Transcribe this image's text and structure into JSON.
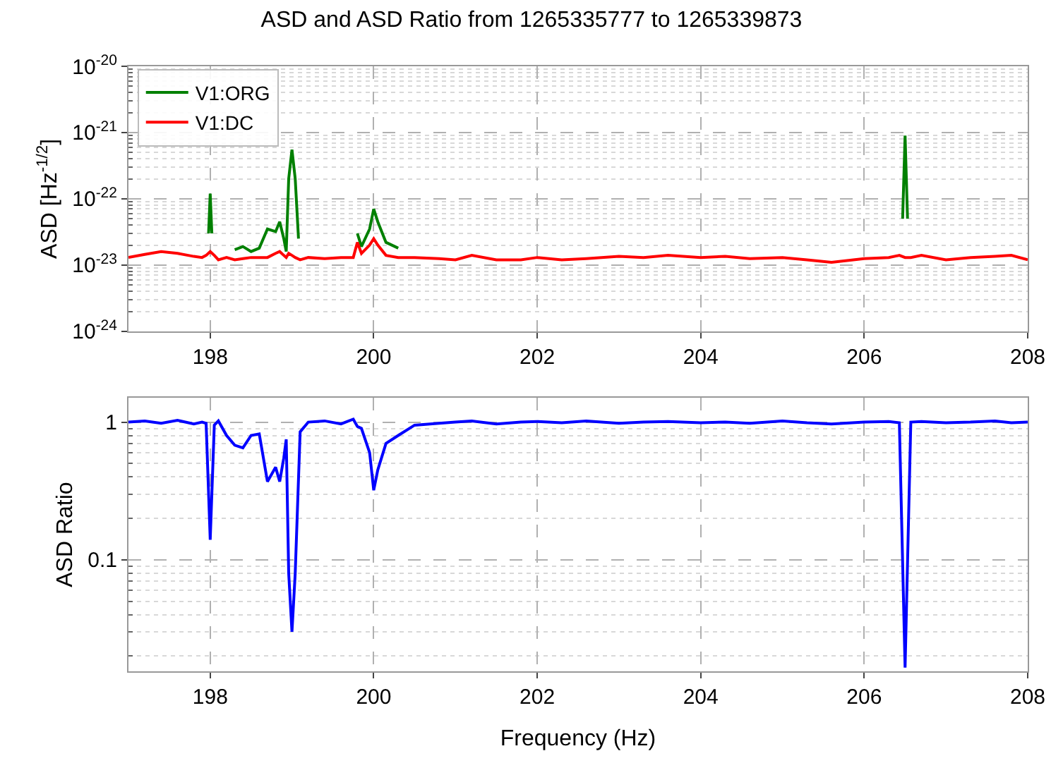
{
  "chart_data": [
    {
      "type": "line",
      "title": "ASD and ASD Ratio from 1265335777 to 1265339873",
      "ylabel": "ASD [Hz$^{-1/2}$]",
      "log": "y",
      "grid": true,
      "legend": "top left",
      "marker": "none",
      "line_style": "solid",
      "xlim": [
        197,
        208
      ],
      "xticks": [
        198,
        200,
        202,
        204,
        206,
        208
      ],
      "ylim": [
        1e-24,
        1e-20
      ],
      "yticks": [
        {
          "value": 1e-24,
          "label": "10$^{-24}$"
        },
        {
          "value": 1e-23,
          "label": "10$^{-23}$"
        },
        {
          "value": 1e-22,
          "label": "10$^{-22}$"
        },
        {
          "value": 1e-21,
          "label": "10$^{-21}$"
        },
        {
          "value": 1e-20,
          "label": "10$^{-20}$"
        }
      ],
      "x": [
        197.0,
        197.2,
        197.4,
        197.6,
        197.8,
        197.9,
        197.95,
        198.0,
        198.05,
        198.1,
        198.2,
        198.3,
        198.4,
        198.5,
        198.6,
        198.7,
        198.8,
        198.85,
        198.9,
        198.93,
        198.96,
        199.0,
        199.04,
        199.1,
        199.2,
        199.4,
        199.6,
        199.75,
        199.8,
        199.85,
        199.95,
        200.0,
        200.05,
        200.15,
        200.3,
        200.5,
        200.8,
        201.0,
        201.2,
        201.5,
        201.8,
        202.0,
        202.3,
        202.6,
        203.0,
        203.3,
        203.6,
        204.0,
        204.3,
        204.6,
        205.0,
        205.3,
        205.6,
        206.0,
        206.3,
        206.43,
        206.5,
        206.57,
        206.7,
        207.0,
        207.3,
        207.6,
        207.8,
        208.0
      ],
      "series": [
        {
          "name": "V1:ORG",
          "color": "#008000",
          "x": [
            197.98,
            198.0,
            198.02,
            198.15,
            198.3,
            198.4,
            198.5,
            198.6,
            198.7,
            198.8,
            198.85,
            198.9,
            198.93,
            198.96,
            199.0,
            199.04,
            199.08,
            199.5,
            199.8,
            199.85,
            199.95,
            200.0,
            200.05,
            200.15,
            200.3,
            203.0,
            206.47,
            206.5,
            206.53
          ],
          "values": [
            3e-23,
            1.2e-22,
            3e-23,
            null,
            1.7e-23,
            1.9e-23,
            1.6e-23,
            1.8e-23,
            3.5e-23,
            3.2e-23,
            4.5e-23,
            2.5e-23,
            1.6e-23,
            2e-22,
            5.5e-22,
            2e-22,
            2.5e-23,
            null,
            3e-23,
            1.9e-23,
            3.5e-23,
            7e-23,
            4.5e-23,
            2.2e-23,
            1.8e-23,
            null,
            5e-23,
            9e-22,
            5e-23
          ]
        },
        {
          "name": "V1:DC",
          "color": "#ff0000",
          "values": [
            1.3e-23,
            1.45e-23,
            1.6e-23,
            1.5e-23,
            1.35e-23,
            1.3e-23,
            1.4e-23,
            1.6e-23,
            1.4e-23,
            1.2e-23,
            1.3e-23,
            1.2e-23,
            1.25e-23,
            1.3e-23,
            1.3e-23,
            1.3e-23,
            1.5e-23,
            1.6e-23,
            1.4e-23,
            1.3e-23,
            1.5e-23,
            1.4e-23,
            1.3e-23,
            1.2e-23,
            1.3e-23,
            1.25e-23,
            1.3e-23,
            1.3e-23,
            2.2e-23,
            1.5e-23,
            2e-23,
            2.5e-23,
            2e-23,
            1.4e-23,
            1.3e-23,
            1.3e-23,
            1.25e-23,
            1.2e-23,
            1.4e-23,
            1.2e-23,
            1.2e-23,
            1.3e-23,
            1.2e-23,
            1.25e-23,
            1.35e-23,
            1.3e-23,
            1.4e-23,
            1.3e-23,
            1.35e-23,
            1.25e-23,
            1.3e-23,
            1.2e-23,
            1.1e-23,
            1.25e-23,
            1.3e-23,
            1.4e-23,
            1.3e-23,
            1.3e-23,
            1.4e-23,
            1.2e-23,
            1.3e-23,
            1.35e-23,
            1.4e-23,
            1.2e-23
          ]
        }
      ]
    },
    {
      "type": "line",
      "xlabel": "Frequency (Hz)",
      "ylabel": "ASD Ratio",
      "log": "y",
      "grid": true,
      "marker": "none",
      "line_style": "solid",
      "xlim": [
        197,
        208
      ],
      "xticks": [
        198,
        200,
        202,
        204,
        206,
        208
      ],
      "ylim": [
        0.0155,
        1.5
      ],
      "yticks": [
        0.1,
        1
      ],
      "x": [
        197.0,
        197.2,
        197.4,
        197.6,
        197.8,
        197.9,
        197.95,
        198.0,
        198.05,
        198.1,
        198.2,
        198.3,
        198.4,
        198.5,
        198.6,
        198.7,
        198.8,
        198.85,
        198.9,
        198.93,
        198.96,
        199.0,
        199.04,
        199.1,
        199.2,
        199.4,
        199.6,
        199.75,
        199.8,
        199.85,
        199.95,
        200.0,
        200.05,
        200.15,
        200.3,
        200.5,
        200.8,
        201.0,
        201.2,
        201.5,
        201.8,
        202.0,
        202.3,
        202.6,
        203.0,
        203.3,
        203.6,
        204.0,
        204.3,
        204.6,
        205.0,
        205.3,
        205.6,
        206.0,
        206.3,
        206.43,
        206.5,
        206.57,
        206.7,
        207.0,
        207.3,
        207.6,
        207.8,
        208.0
      ],
      "series": [
        {
          "color": "#0000ff",
          "values": [
            1.0,
            1.02,
            0.98,
            1.03,
            0.97,
            1.0,
            0.98,
            0.14,
            0.95,
            1.02,
            0.8,
            0.68,
            0.65,
            0.8,
            0.82,
            0.37,
            0.47,
            0.37,
            0.55,
            0.75,
            0.08,
            0.03,
            0.08,
            0.85,
            1.0,
            1.02,
            0.97,
            1.05,
            0.93,
            0.9,
            0.6,
            0.32,
            0.45,
            0.7,
            0.8,
            0.95,
            0.98,
            1.0,
            1.02,
            0.97,
            1.0,
            1.01,
            0.99,
            1.02,
            0.98,
            1.0,
            1.01,
            0.99,
            1.0,
            0.98,
            1.02,
            0.99,
            0.97,
            1.0,
            1.01,
            0.99,
            0.0165,
            1.0,
            1.01,
            0.99,
            1.0,
            1.02,
            0.99,
            1.0
          ]
        }
      ]
    }
  ]
}
